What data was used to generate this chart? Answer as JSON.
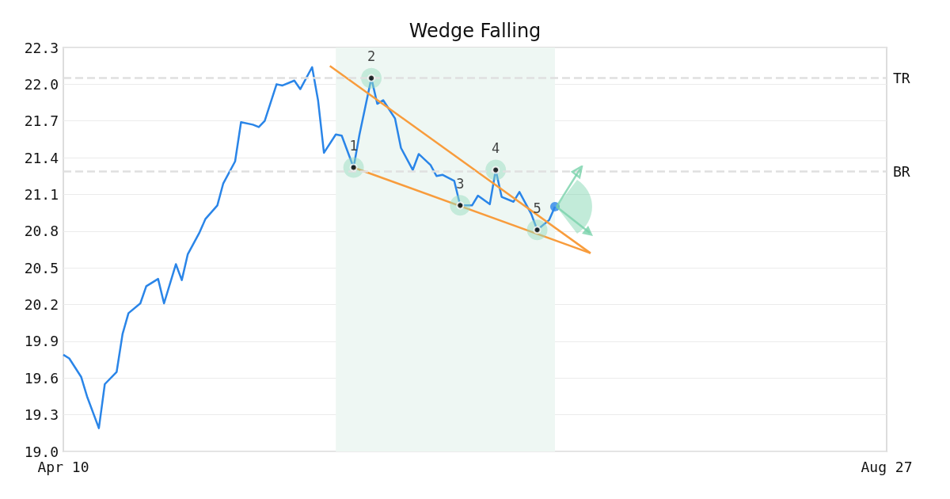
{
  "chart_data": {
    "type": "line",
    "title": "Wedge Falling",
    "x": [
      "--04-10",
      "--04-11",
      "--04-13",
      "--04-14",
      "--04-16",
      "--04-17",
      "--04-19",
      "--04-20",
      "--04-21",
      "--04-23",
      "--04-24",
      "--04-26",
      "--04-27",
      "--04-29",
      "--04-30",
      "--05-01",
      "--05-03",
      "--05-04",
      "--05-06",
      "--05-07",
      "--05-09",
      "--05-10",
      "--05-12",
      "--05-13",
      "--05-14",
      "--05-16",
      "--05-17",
      "--05-19",
      "--05-20",
      "--05-22",
      "--05-23",
      "--05-24",
      "--05-26",
      "--05-27",
      "--05-29",
      "--05-30",
      "--06-01",
      "--06-02",
      "--06-03",
      "--06-05",
      "--06-06",
      "--06-08",
      "--06-09",
      "--06-11",
      "--06-12",
      "--06-13",
      "--06-15",
      "--06-16",
      "--06-18",
      "--06-19",
      "--06-21",
      "--06-22",
      "--06-23",
      "--06-25",
      "--06-26",
      "--06-28",
      "--06-29",
      "--07-01",
      "--07-02"
    ],
    "series": [
      {
        "color": "#2a85e8",
        "marker": "none",
        "values": [
          19.79,
          19.76,
          19.61,
          19.45,
          19.19,
          19.55,
          19.65,
          19.96,
          20.13,
          20.21,
          20.35,
          20.41,
          20.21,
          20.53,
          20.4,
          20.61,
          20.79,
          20.9,
          21.01,
          21.19,
          21.37,
          21.69,
          21.67,
          21.65,
          21.7,
          22.0,
          21.99,
          22.03,
          21.96,
          22.14,
          21.87,
          21.44,
          21.59,
          21.58,
          21.32,
          21.59,
          22.05,
          21.84,
          21.87,
          21.72,
          21.48,
          21.3,
          21.43,
          21.34,
          21.25,
          21.26,
          21.21,
          21.01,
          21.01,
          21.09,
          21.02,
          21.3,
          21.08,
          21.04,
          21.12,
          20.94,
          20.81,
          20.89,
          21.0
        ]
      },
      {
        "type": "line",
        "color": "#f89c3c",
        "marker": "none",
        "x": [
          "--05-25",
          "--07-08"
        ],
        "values": [
          22.15,
          20.62
        ]
      },
      {
        "type": "line",
        "color": "#f89c3c",
        "marker": "none",
        "x": [
          "--05-29",
          "--07-08"
        ],
        "values": [
          21.32,
          20.62
        ]
      },
      {
        "type": "scatter",
        "color": "#000000",
        "marker": "circle",
        "x": [
          "--05-29",
          "--06-01",
          "--06-16",
          "--06-22",
          "--06-29"
        ],
        "values": [
          21.32,
          22.05,
          21.01,
          21.3,
          20.81
        ]
      },
      {
        "type": "scatter",
        "color": "#2a85e8",
        "marker": "circle",
        "x": [
          "--07-02"
        ],
        "values": [
          21.0
        ]
      }
    ],
    "annotations": [
      {
        "text": "1",
        "x": "--05-29",
        "y": 21.32
      },
      {
        "text": "2",
        "x": "--06-01",
        "y": 22.05
      },
      {
        "text": "3",
        "x": "--06-16",
        "y": 21.01
      },
      {
        "text": "4",
        "x": "--06-22",
        "y": 21.3
      },
      {
        "text": "5",
        "x": "--06-29",
        "y": 20.81
      }
    ],
    "ref_lines": [
      {
        "axis": "y",
        "value": 22.05,
        "label": "TR",
        "color": "#e0e0e0",
        "line_style": "dashed"
      },
      {
        "axis": "y",
        "value": 21.29,
        "label": "BR",
        "color": "#e0e0e0",
        "line_style": "dashed"
      }
    ],
    "bands": [
      {
        "axis": "x",
        "from": "--05-26",
        "to": "--07-02",
        "color": "#eef7f3"
      }
    ],
    "xlim": [
      "--04-10",
      "--08-27"
    ],
    "xticks": [
      {
        "value": "--04-10",
        "label": "Apr 10"
      },
      {
        "value": "--08-27",
        "label": "Aug 27"
      }
    ],
    "ylim": [
      19.0,
      22.3
    ],
    "yticks": [
      {
        "value": 19.0,
        "label": "19.0"
      },
      19.3,
      19.6,
      19.9,
      20.2,
      20.5,
      20.8,
      21.1,
      21.4,
      21.7,
      {
        "value": 22.0,
        "label": "22.0"
      },
      22.3
    ],
    "grid": "y"
  }
}
